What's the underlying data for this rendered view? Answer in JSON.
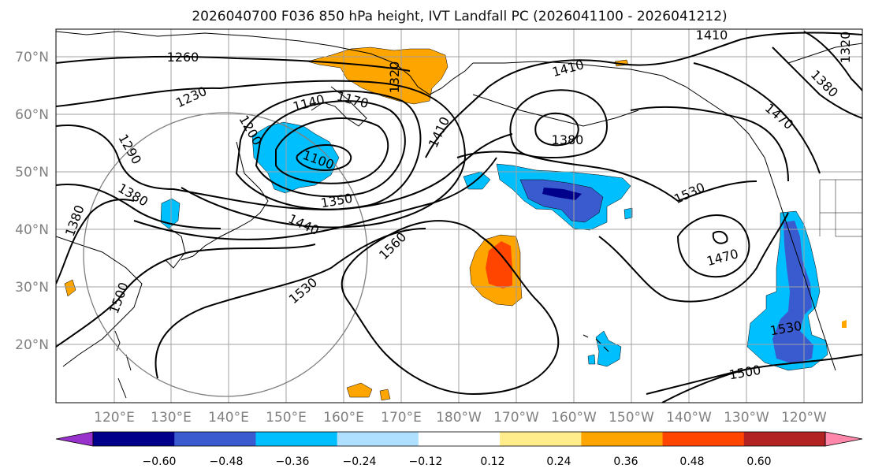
{
  "title": "2026040700 F036 850 hPa height, IVT Landfall PC (2026041100 - 2026041212)",
  "map": {
    "lon_labels": [
      "120°E",
      "130°E",
      "140°E",
      "150°E",
      "160°E",
      "170°E",
      "180°W",
      "170°W",
      "160°W",
      "150°W",
      "140°W",
      "130°W",
      "120°W"
    ],
    "lat_labels": [
      "70°N",
      "60°N",
      "50°N",
      "40°N",
      "30°N",
      "20°N"
    ],
    "contour_labels": [
      {
        "text": "1260"
      },
      {
        "text": "1230"
      },
      {
        "text": "1290"
      },
      {
        "text": "1200"
      },
      {
        "text": "1140"
      },
      {
        "text": "1170"
      },
      {
        "text": "1320"
      },
      {
        "text": "1410"
      },
      {
        "text": "1410"
      },
      {
        "text": "1410"
      },
      {
        "text": "1380"
      },
      {
        "text": "1380"
      },
      {
        "text": "1380"
      },
      {
        "text": "1470"
      },
      {
        "text": "1320"
      },
      {
        "text": "1380"
      },
      {
        "text": "1100"
      },
      {
        "text": "1350"
      },
      {
        "text": "1440"
      },
      {
        "text": "1560"
      },
      {
        "text": "1530"
      },
      {
        "text": "1530"
      },
      {
        "text": "1470"
      },
      {
        "text": "1500"
      },
      {
        "text": "1530"
      },
      {
        "text": "1500"
      }
    ]
  },
  "colorbar": {
    "tick_labels": [
      "−0.60",
      "−0.48",
      "−0.36",
      "−0.24",
      "−0.12",
      "0.12",
      "0.24",
      "0.36",
      "0.48",
      "0.60"
    ],
    "colors": [
      "#9932cc",
      "#00008b",
      "#3a5bd0",
      "#00bfff",
      "#b0e0ff",
      "#ffffff",
      "#ffec8b",
      "#ffa500",
      "#ff4500",
      "#b22222",
      "#ff88aa"
    ]
  }
}
